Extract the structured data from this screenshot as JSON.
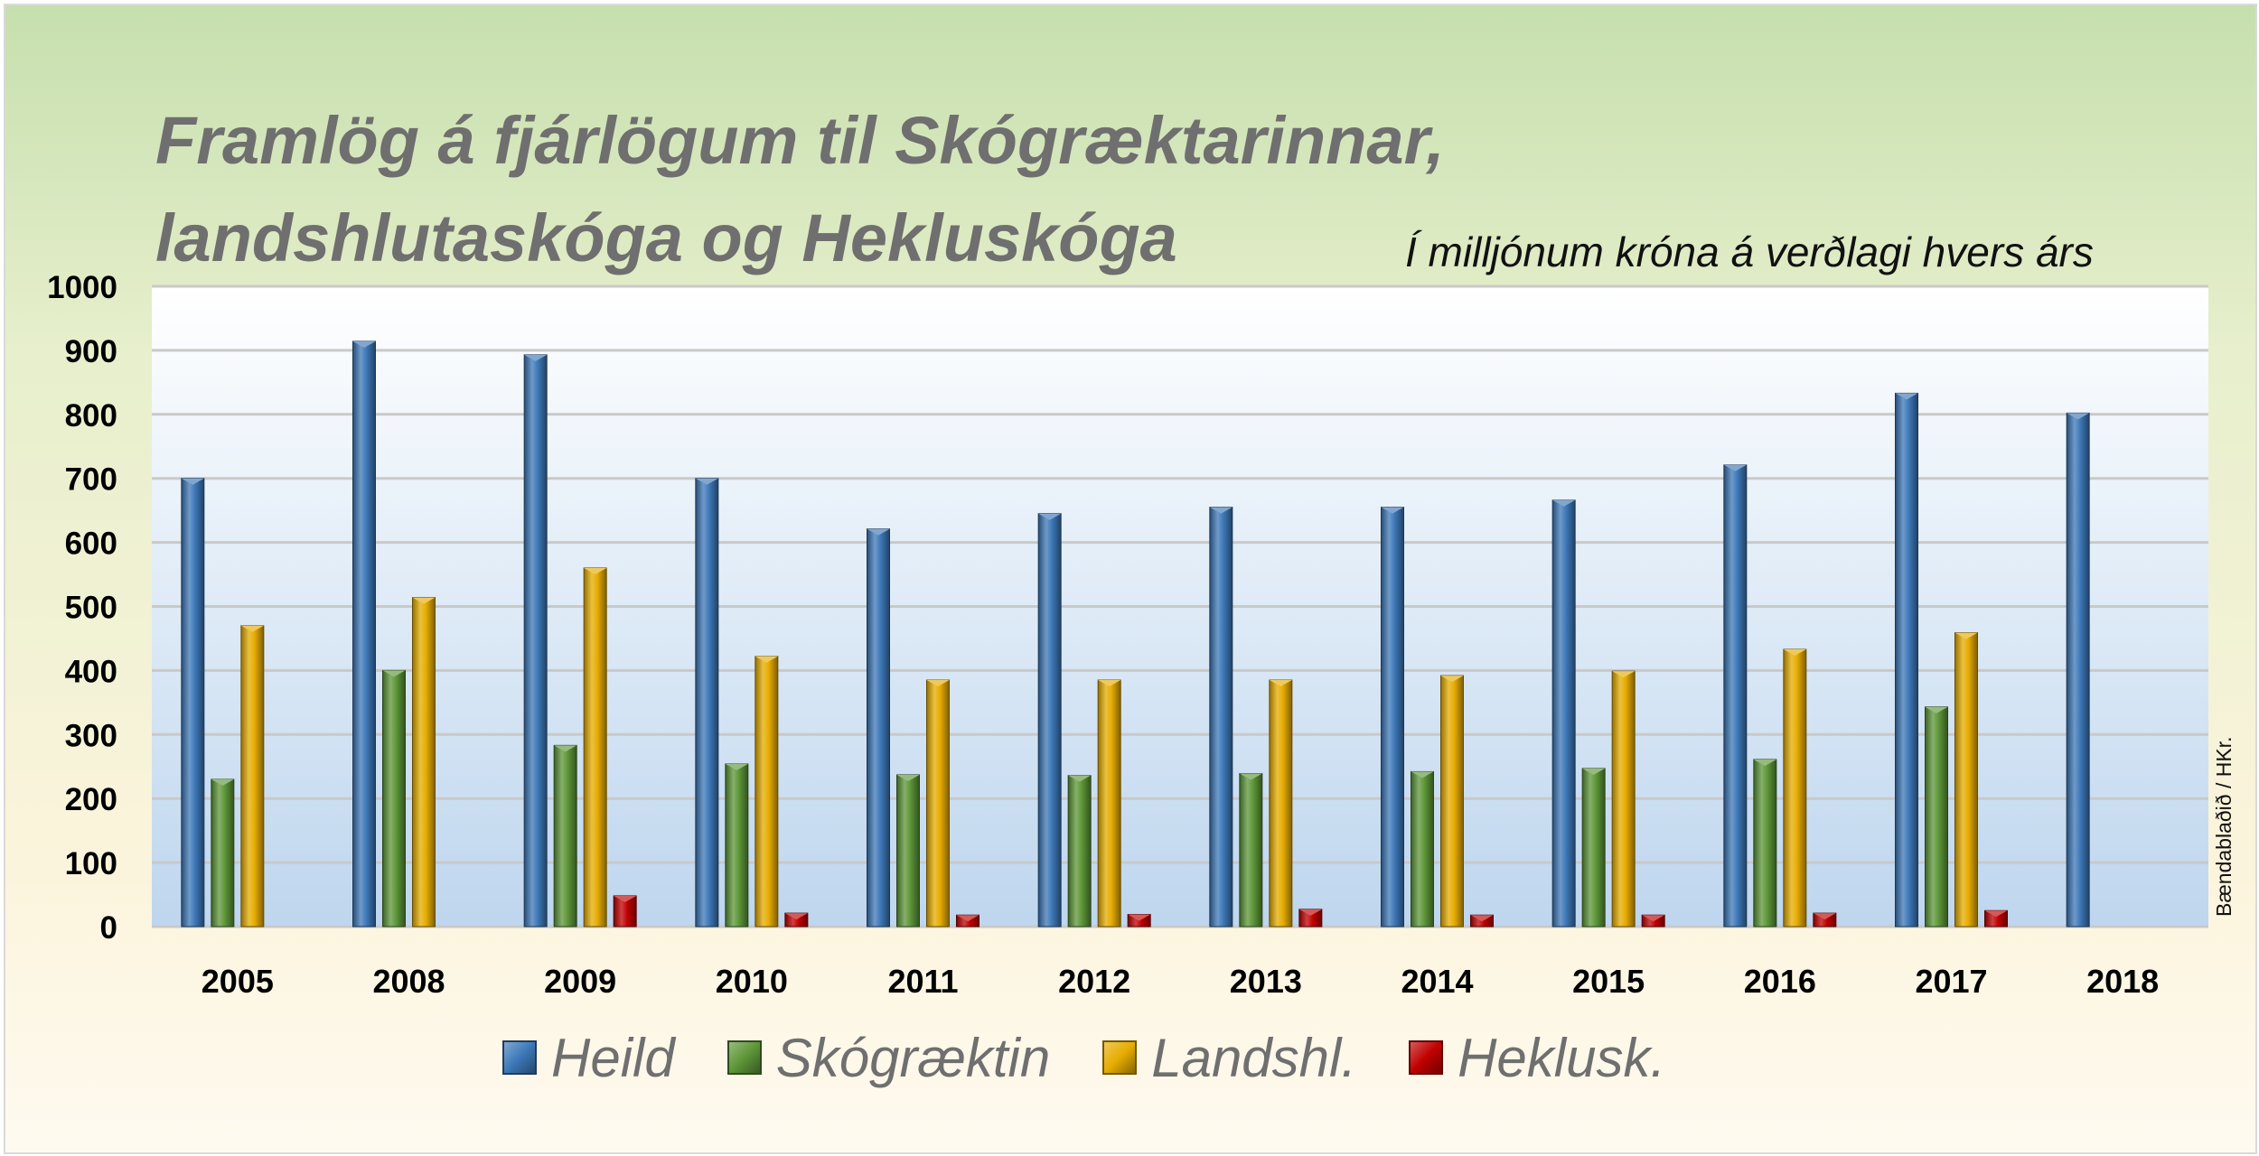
{
  "chart_data": {
    "type": "bar",
    "title_lines": [
      "Framlög á fjárlögum til Skógræktarinnar,",
      "landshlutaskóga og Hekluskóga"
    ],
    "subtitle": "Í milljónum króna á verðlagi hvers árs",
    "credit": "Bændablaðið / HKr.",
    "categories": [
      "2005",
      "2008",
      "2009",
      "2010",
      "2011",
      "2012",
      "2013",
      "2014",
      "2015",
      "2016",
      "2017",
      "2018"
    ],
    "series": [
      {
        "name": "Heild",
        "color": "#3d78b8",
        "values": [
          700,
          914,
          893,
          700,
          621,
          645,
          655,
          655,
          666,
          721,
          833,
          802
        ]
      },
      {
        "name": "Skógræktin",
        "color": "#5d9638",
        "values": [
          230,
          400,
          283,
          254,
          237,
          236,
          239,
          242,
          247,
          261,
          343,
          null
        ]
      },
      {
        "name": "Landshl.",
        "color": "#e6ac00",
        "values": [
          470,
          514,
          560,
          422,
          385,
          385,
          385,
          392,
          399,
          433,
          459,
          null
        ]
      },
      {
        "name": "Heklusk.",
        "color": "#c00000",
        "values": [
          null,
          null,
          48,
          21,
          18,
          19,
          27,
          18,
          18,
          21,
          25,
          null
        ]
      }
    ],
    "yticks": [
      "0",
      "100",
      "200",
      "300",
      "400",
      "500",
      "600",
      "700",
      "800",
      "900",
      "1000"
    ],
    "ylim": [
      0,
      1000
    ],
    "grid": true,
    "legend_position": "bottom"
  }
}
